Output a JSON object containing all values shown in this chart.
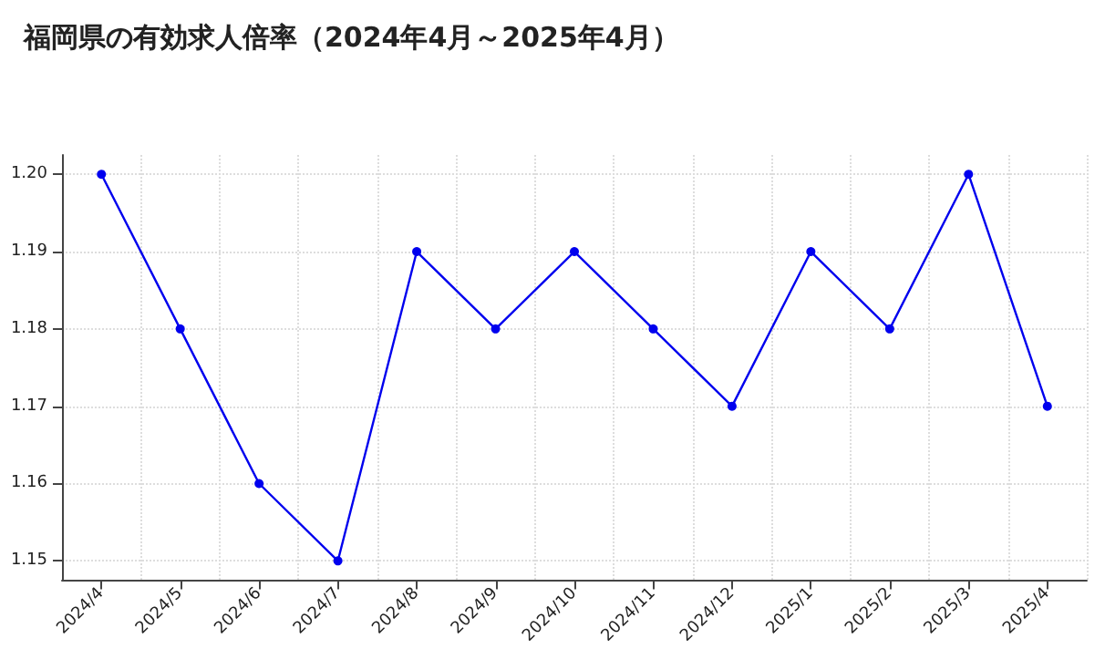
{
  "chart_data": {
    "type": "line",
    "title": "福岡県の有効求人倍率（2024年4月～2025年4月）",
    "categories": [
      "2024/4",
      "2024/5",
      "2024/6",
      "2024/7",
      "2024/8",
      "2024/9",
      "2024/10",
      "2024/11",
      "2024/12",
      "2025/1",
      "2025/2",
      "2025/3",
      "2025/4"
    ],
    "series": [
      {
        "color": "#0000ee",
        "values": [
          1.2,
          1.18,
          1.16,
          1.15,
          1.19,
          1.18,
          1.19,
          1.18,
          1.17,
          1.19,
          1.18,
          1.2,
          1.17
        ]
      }
    ],
    "ylim": [
      1.1475,
      1.2025
    ],
    "yticks": [
      {
        "value": 1.15,
        "label": "1.15"
      },
      {
        "value": 1.16,
        "label": "1.16"
      },
      {
        "value": 1.17,
        "label": "1.17"
      },
      {
        "value": 1.18,
        "label": "1.18"
      },
      {
        "value": 1.19,
        "label": "1.19"
      },
      {
        "value": 1.2,
        "label": "1.20"
      }
    ],
    "grid": true,
    "marker": "circle",
    "line_style": "solid"
  }
}
